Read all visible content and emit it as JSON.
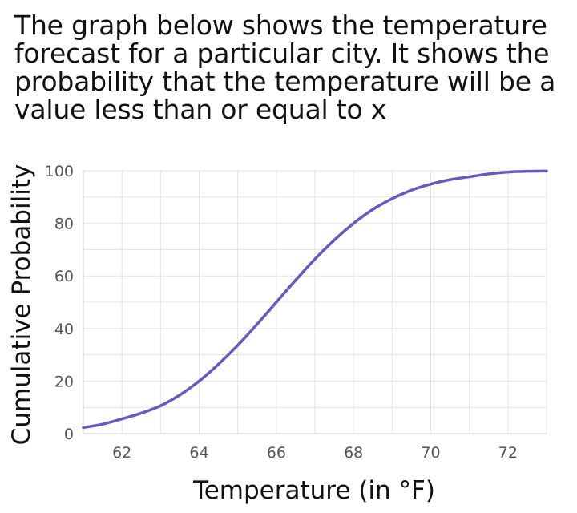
{
  "question": {
    "lines": [
      "The graph below shows the temperature",
      "forecast for a particular city. It shows the",
      "probability that the temperature will be a",
      "value less than or equal to x"
    ]
  },
  "chart_data": {
    "type": "line",
    "title": "",
    "xlabel": "Temperature (in °F)",
    "ylabel": "Cumulative Probability",
    "xlim": [
      61,
      73
    ],
    "ylim": [
      0,
      100
    ],
    "xticks": [
      62,
      64,
      66,
      68,
      70,
      72
    ],
    "yticks": [
      0,
      20,
      40,
      60,
      80,
      100
    ],
    "grid": true,
    "line_color": "#6a58c0",
    "series": [
      {
        "x": [
          61,
          61.5,
          62,
          62.5,
          63,
          63.5,
          64,
          64.5,
          65,
          65.5,
          66,
          66.5,
          67,
          67.5,
          68,
          68.5,
          69,
          69.5,
          70,
          70.5,
          71,
          71.5,
          72,
          72.5,
          73
        ],
        "values": [
          2.3,
          3.6,
          5.6,
          7.8,
          10.6,
          14.7,
          20.0,
          26.4,
          33.6,
          41.6,
          50.0,
          58.4,
          66.4,
          73.6,
          80.0,
          85.3,
          89.4,
          92.6,
          94.9,
          96.6,
          97.7,
          98.8,
          99.5,
          99.8,
          99.9
        ]
      }
    ]
  }
}
